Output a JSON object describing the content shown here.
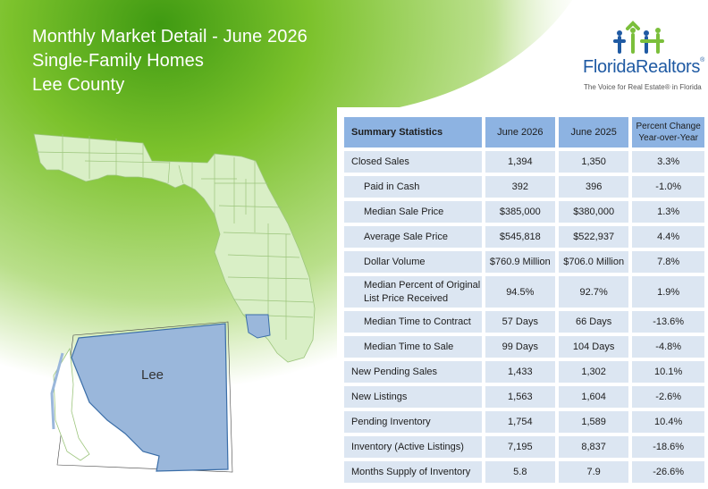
{
  "header": {
    "line1": "Monthly Market Detail - June 2026",
    "line2": "Single-Family Homes",
    "line3": "Lee County"
  },
  "logo": {
    "brand": "FloridaRealtors",
    "reg": "®",
    "tagline": "The Voice for Real Estate® in Florida",
    "colors": {
      "green": "#7bbf3b",
      "blue": "#1f5aa3"
    }
  },
  "map": {
    "county_label": "Lee",
    "highlight_color": "#9ab7db",
    "state_color": "#d9efc6"
  },
  "table": {
    "headers": {
      "stat": "Summary Statistics",
      "c1": "June 2026",
      "c2": "June 2025",
      "c3a": "Percent Change",
      "c3b": "Year-over-Year"
    },
    "rows": [
      {
        "label": "Closed Sales",
        "a": "1,394",
        "b": "1,350",
        "c": "3.3%"
      },
      {
        "label": "Paid in Cash",
        "a": "392",
        "b": "396",
        "c": "-1.0%"
      },
      {
        "label": "Median Sale Price",
        "a": "$385,000",
        "b": "$380,000",
        "c": "1.3%"
      },
      {
        "label": "Average Sale Price",
        "a": "$545,818",
        "b": "$522,937",
        "c": "4.4%"
      },
      {
        "label": "Dollar Volume",
        "a": "$760.9 Million",
        "b": "$706.0 Million",
        "c": "7.8%"
      },
      {
        "label_a": "Median Percent of Original",
        "label_b": "List Price Received",
        "a": "94.5%",
        "b": "92.7%",
        "c": "1.9%"
      },
      {
        "label": "Median Time to Contract",
        "a": "57 Days",
        "b": "66 Days",
        "c": "-13.6%"
      },
      {
        "label": "Median Time to Sale",
        "a": "99 Days",
        "b": "104 Days",
        "c": "-4.8%"
      },
      {
        "label": "New Pending Sales",
        "a": "1,433",
        "b": "1,302",
        "c": "10.1%"
      },
      {
        "label": "New Listings",
        "a": "1,563",
        "b": "1,604",
        "c": "-2.6%"
      },
      {
        "label": "Pending Inventory",
        "a": "1,754",
        "b": "1,589",
        "c": "10.4%"
      },
      {
        "label": "Inventory (Active Listings)",
        "a": "7,195",
        "b": "8,837",
        "c": "-18.6%"
      },
      {
        "label": "Months Supply of Inventory",
        "a": "5.8",
        "b": "7.9",
        "c": "-26.6%"
      }
    ]
  }
}
